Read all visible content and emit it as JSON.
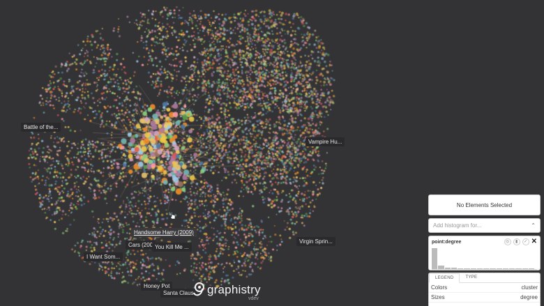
{
  "labels": {
    "battle": "Battle of the...",
    "vampire": "Vampire Hu...",
    "handsome": "Handsome Harry (2009)",
    "cars": "Cars (200",
    "youkill": "You Kill Me ...",
    "virgin": "Virgin Sprin...",
    "iwant": "I Want Som...",
    "honey": "Honey Pot",
    "santa": "Santa Claus"
  },
  "logo": {
    "text": "graphistry",
    "sub": "vdev"
  },
  "panel": {
    "selection": "No Elements Selected",
    "histogram_placeholder": "Add histogram for...",
    "histogram_title": "point:degree",
    "histogram_values": [
      1.0,
      0.18,
      0.08,
      0.06,
      0.05,
      0.04,
      0.04,
      0.03,
      0.03,
      0.02,
      0.02,
      0.02,
      0.02,
      0.01,
      0.01,
      0.01
    ],
    "tabs": [
      "LEGEND",
      "TYPE"
    ],
    "legend_rows": [
      {
        "key": "Colors",
        "value": "cluster"
      },
      {
        "key": "Sizes",
        "value": "degree"
      }
    ]
  },
  "colors": {
    "background": "#333336",
    "node_palette": [
      "#e8c36a",
      "#f28e2b",
      "#e15759",
      "#76b7b2",
      "#59a14f",
      "#edc948",
      "#b07aa1",
      "#ff9da7",
      "#9c755f",
      "#4e79a7",
      "#d4a6c8",
      "#8cd17d",
      "#f1ce63",
      "#a0cbe8"
    ]
  }
}
